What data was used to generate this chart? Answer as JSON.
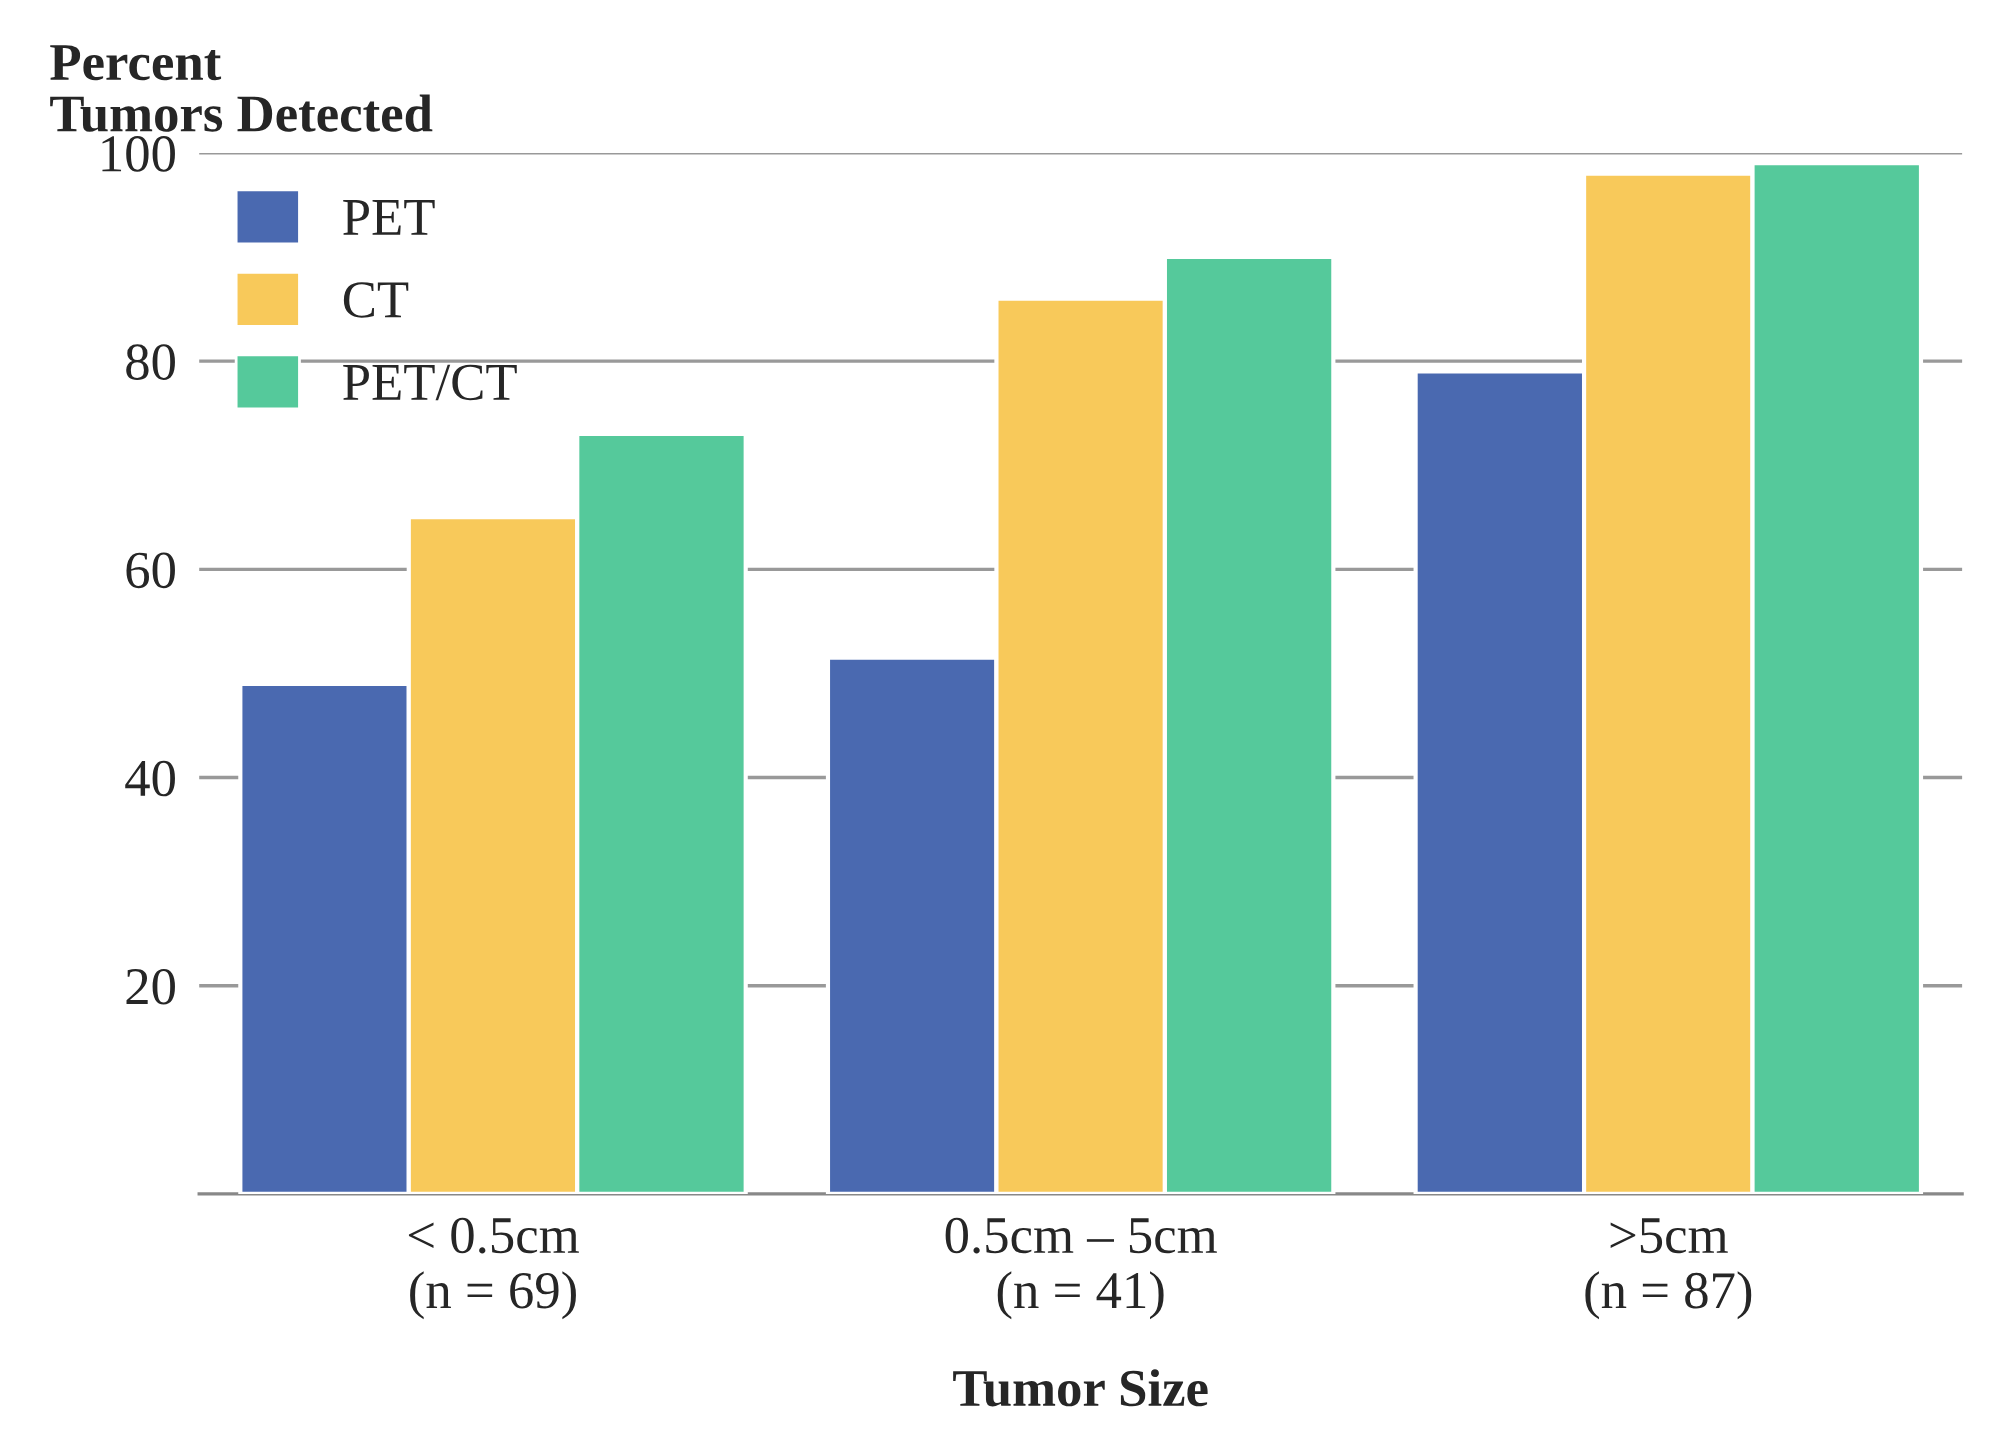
{
  "chart_data": {
    "type": "bar",
    "ylabel": "Percent\nTumors Detected",
    "xlabel": "Tumor Size",
    "categories": [
      "< 0.5cm\n(n = 69)",
      "0.5cm – 5cm\n(n = 41)",
      ">5cm\n(n = 87)"
    ],
    "series": [
      {
        "name": "PET",
        "color": "#4a69b0",
        "values": [
          49,
          51.5,
          79
        ]
      },
      {
        "name": "CT",
        "color": "#f8c95a",
        "values": [
          65,
          86,
          98
        ]
      },
      {
        "name": "PET/CT",
        "color": "#55c99b",
        "values": [
          73,
          90,
          99
        ]
      }
    ],
    "ylim": [
      0,
      100
    ],
    "yticks": [
      20,
      40,
      60,
      80,
      100
    ],
    "grid": "y",
    "legend": "top left"
  }
}
